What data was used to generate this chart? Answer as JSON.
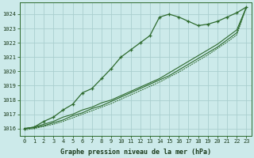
{
  "hours": [
    0,
    1,
    2,
    3,
    4,
    5,
    6,
    7,
    8,
    9,
    10,
    11,
    12,
    13,
    14,
    15,
    16,
    17,
    18,
    19,
    20,
    21,
    22,
    23
  ],
  "main_line": [
    1016.0,
    1016.1,
    1016.5,
    1016.8,
    1017.3,
    1017.7,
    1018.5,
    1018.8,
    1019.5,
    1020.2,
    1021.0,
    1021.5,
    1022.0,
    1022.5,
    1023.8,
    1024.0,
    1023.8,
    1023.5,
    1023.2,
    1023.3,
    1023.5,
    1023.8,
    1024.1,
    1024.5
  ],
  "straight1": [
    1016.0,
    1016.1,
    1016.3,
    1016.5,
    1016.8,
    1017.0,
    1017.3,
    1017.5,
    1017.8,
    1018.0,
    1018.3,
    1018.6,
    1018.9,
    1019.2,
    1019.5,
    1019.9,
    1020.3,
    1020.7,
    1021.1,
    1021.5,
    1021.9,
    1022.4,
    1022.9,
    1024.5
  ],
  "straight2": [
    1016.0,
    1016.05,
    1016.2,
    1016.4,
    1016.6,
    1016.9,
    1017.1,
    1017.4,
    1017.6,
    1017.9,
    1018.2,
    1018.5,
    1018.8,
    1019.1,
    1019.4,
    1019.7,
    1020.1,
    1020.5,
    1020.9,
    1021.3,
    1021.7,
    1022.2,
    1022.7,
    1024.5
  ],
  "straight3": [
    1015.9,
    1016.0,
    1016.15,
    1016.3,
    1016.5,
    1016.75,
    1017.0,
    1017.25,
    1017.5,
    1017.75,
    1018.05,
    1018.35,
    1018.65,
    1018.95,
    1019.25,
    1019.6,
    1019.95,
    1020.35,
    1020.75,
    1021.15,
    1021.6,
    1022.05,
    1022.55,
    1024.5
  ],
  "line_color": "#2d6a2d",
  "bg_color": "#cceaea",
  "grid_color": "#aacfcf",
  "xlabel": "Graphe pression niveau de la mer (hPa)",
  "ylim": [
    1015.5,
    1024.8
  ],
  "yticks": [
    1016,
    1017,
    1018,
    1019,
    1020,
    1021,
    1022,
    1023,
    1024
  ]
}
